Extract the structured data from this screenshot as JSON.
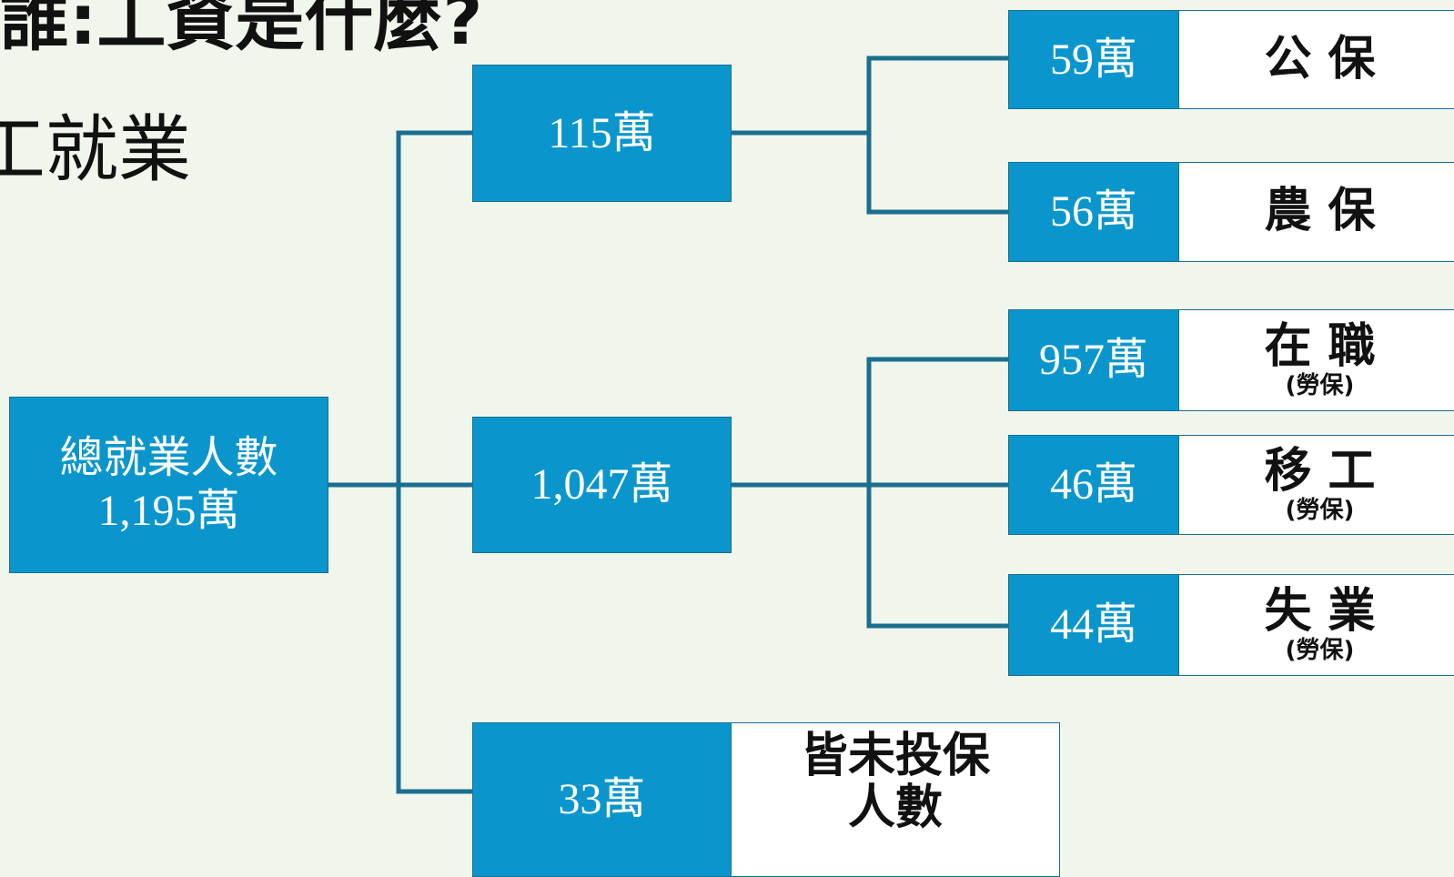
{
  "header": {
    "title": "誰:工資是什麼?",
    "subtitle": "工就業"
  },
  "nodes": [
    {
      "label": "總就業人數",
      "value": "1,195萬"
    },
    {
      "value": "115萬"
    },
    {
      "value": "1,047萬"
    },
    {
      "value": "33萬",
      "label": "皆未投保",
      "label2": "人數"
    },
    {
      "value": "59萬",
      "label": "公 保"
    },
    {
      "value": "56萬",
      "label": "農 保"
    },
    {
      "value": "957萬",
      "label": "在 職",
      "note": "(勞保)"
    },
    {
      "value": "46萬",
      "label": "移 工",
      "note": "(勞保)"
    },
    {
      "value": "44萬",
      "label": "失 業",
      "note": "(勞保)"
    }
  ]
}
